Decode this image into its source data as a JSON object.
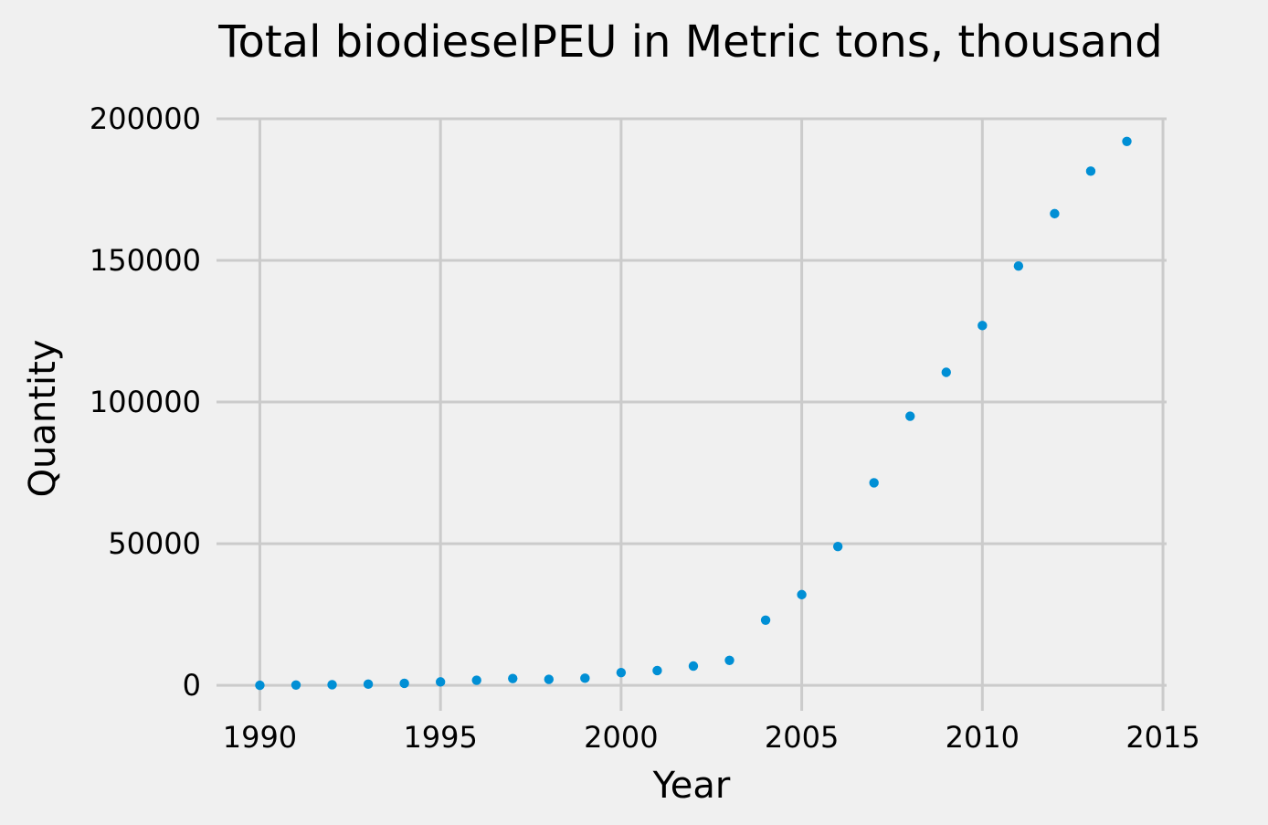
{
  "chart_data": {
    "type": "scatter",
    "title": "Total biodieselPEU in Metric tons,  thousand",
    "xlabel": "Year",
    "ylabel": "Quantity",
    "xlim": [
      1988.8,
      2015.1
    ],
    "ylim": [
      -9000,
      200000
    ],
    "xticks": [
      1990,
      1995,
      2000,
      2005,
      2010,
      2015
    ],
    "yticks": [
      0,
      50000,
      100000,
      150000,
      200000
    ],
    "grid": true,
    "color": "#008fd5",
    "x": [
      1990,
      1991,
      1992,
      1993,
      1994,
      1995,
      1996,
      1997,
      1998,
      1999,
      2000,
      2001,
      2002,
      2003,
      2004,
      2005,
      2006,
      2007,
      2008,
      2009,
      2010,
      2011,
      2012,
      2013,
      2014
    ],
    "y": [
      0,
      100,
      200,
      400,
      700,
      1200,
      1800,
      2400,
      2100,
      2500,
      4500,
      5200,
      6800,
      8800,
      23000,
      32000,
      49000,
      71500,
      95000,
      110500,
      127000,
      148000,
      166500,
      181500,
      192000
    ]
  }
}
